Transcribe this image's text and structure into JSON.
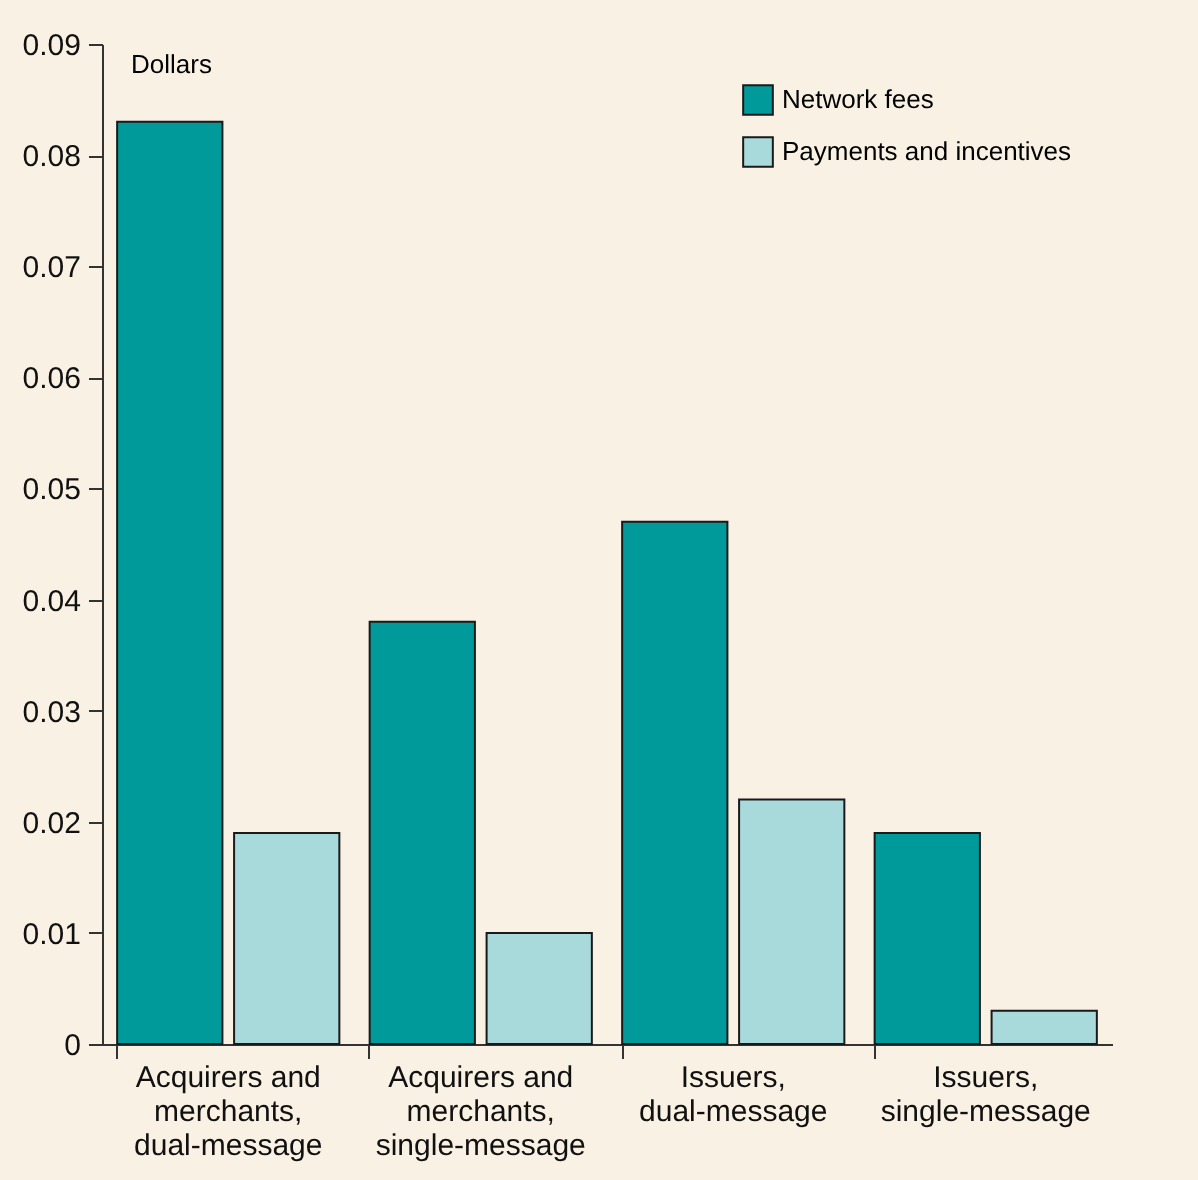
{
  "chart_data": {
    "type": "bar",
    "ylabel": "Dollars",
    "categories": [
      "Acquirers and merchants, dual-message",
      "Acquirers and merchants, single-message",
      "Issuers, dual-message",
      "Issuers, single-message"
    ],
    "series": [
      {
        "name": "Network fees",
        "color": "#009a9a",
        "values": [
          0.083,
          0.038,
          0.047,
          0.019
        ]
      },
      {
        "name": "Payments and incentives",
        "color": "#a8dadb",
        "values": [
          0.019,
          0.01,
          0.022,
          0.003
        ]
      }
    ],
    "ylim": [
      0,
      0.09
    ],
    "yticks": [
      0,
      0.01,
      0.02,
      0.03,
      0.04,
      0.05,
      0.06,
      0.07,
      0.08,
      0.09
    ],
    "grid": false,
    "legend": "top right"
  }
}
